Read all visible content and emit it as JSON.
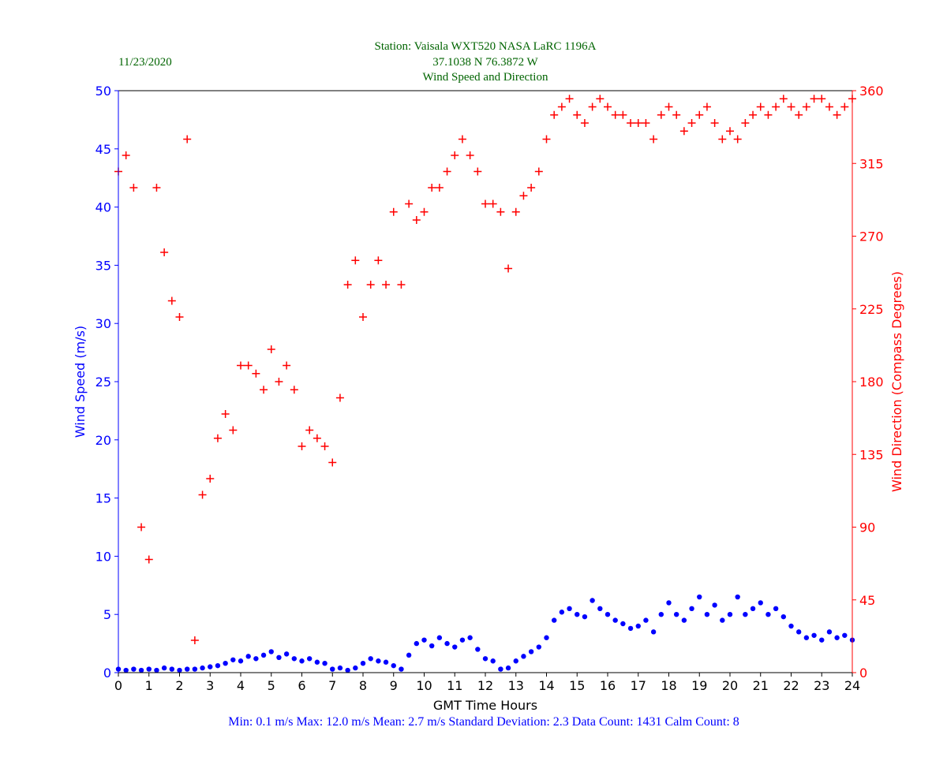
{
  "header": {
    "date": "11/23/2020",
    "station": "Station:  Vaisala WXT520  NASA LaRC 1196A",
    "coords": "37.1038 N 76.3872 W",
    "title": "Wind Speed and Direction"
  },
  "stats": "Min: 0.1 m/s   Max: 12.0 m/s   Mean: 2.7 m/s  Standard Deviation: 2.3  Data Count: 1431  Calm Count:  8",
  "colors": {
    "speed": "#0000ff",
    "direction": "#ff0000",
    "title": "#006400"
  },
  "chart_data": {
    "type": "scatter",
    "title": "Wind Speed and Direction",
    "xlabel": "GMT Time Hours",
    "ylabel": "Wind Speed (m/s)",
    "y2label": "Wind Direction (Compass Degrees)",
    "xlim": [
      0,
      24
    ],
    "ylim": [
      0,
      50
    ],
    "y2lim": [
      0,
      360
    ],
    "xticks": [
      0,
      1,
      2,
      3,
      4,
      5,
      6,
      7,
      8,
      9,
      10,
      11,
      12,
      13,
      14,
      15,
      16,
      17,
      18,
      19,
      20,
      21,
      22,
      23,
      24
    ],
    "yticks": [
      0,
      5,
      10,
      15,
      20,
      25,
      30,
      35,
      40,
      45,
      50
    ],
    "y2ticks": [
      0,
      45,
      90,
      135,
      180,
      225,
      270,
      315,
      360
    ],
    "x_step_hours": 0.25,
    "series": [
      {
        "name": "Wind Speed",
        "axis": "left",
        "marker": "dot",
        "values": [
          0.3,
          0.2,
          0.3,
          0.2,
          0.3,
          0.2,
          0.4,
          0.3,
          0.2,
          0.3,
          0.3,
          0.4,
          0.5,
          0.6,
          0.8,
          1.1,
          1.0,
          1.4,
          1.2,
          1.5,
          1.8,
          1.3,
          1.6,
          1.2,
          1.0,
          1.2,
          0.9,
          0.8,
          0.3,
          0.4,
          0.2,
          0.4,
          0.8,
          1.2,
          1.0,
          0.9,
          0.6,
          0.3,
          1.5,
          2.5,
          2.8,
          2.3,
          3.0,
          2.5,
          2.2,
          2.8,
          3.0,
          2.0,
          1.2,
          1.0,
          0.3,
          0.4,
          1.0,
          1.4,
          1.8,
          2.2,
          3.0,
          4.5,
          5.2,
          5.5,
          5.0,
          4.8,
          6.2,
          5.5,
          5.0,
          4.5,
          4.2,
          3.8,
          4.0,
          4.5,
          3.5,
          5.0,
          6.0,
          5.0,
          4.5,
          5.5,
          6.5,
          5.0,
          5.8,
          4.5,
          5.0,
          6.5,
          5.0,
          5.5,
          6.0,
          5.0,
          5.5,
          4.8,
          4.0,
          3.5,
          3.0,
          3.2,
          2.8,
          3.5,
          3.0,
          3.2,
          2.8
        ]
      },
      {
        "name": "Wind Direction",
        "axis": "right",
        "marker": "plus",
        "values": [
          310,
          320,
          300,
          90,
          70,
          300,
          260,
          230,
          220,
          330,
          20,
          110,
          120,
          145,
          160,
          150,
          190,
          190,
          185,
          175,
          200,
          180,
          190,
          175,
          140,
          150,
          145,
          140,
          130,
          170,
          240,
          255,
          220,
          240,
          255,
          240,
          285,
          240,
          290,
          280,
          285,
          300,
          300,
          310,
          320,
          330,
          320,
          310,
          290,
          290,
          285,
          250,
          285,
          295,
          300,
          310,
          330,
          345,
          350,
          355,
          345,
          340,
          350,
          355,
          350,
          345,
          345,
          340,
          340,
          340,
          330,
          345,
          350,
          345,
          335,
          340,
          345,
          350,
          340,
          330,
          335,
          330,
          340,
          345,
          350,
          345,
          350,
          355,
          350,
          345,
          350,
          355,
          355,
          350,
          345,
          350,
          355
        ]
      }
    ]
  }
}
